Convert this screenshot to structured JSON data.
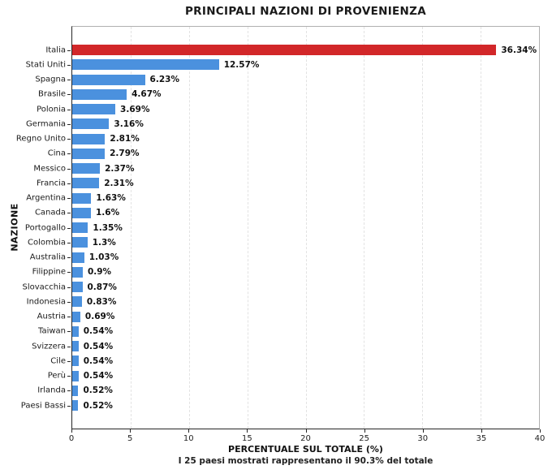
{
  "title": "PRINCIPALI NAZIONI DI PROVENIENZA",
  "chart_data": {
    "type": "bar",
    "orientation": "horizontal",
    "title": "PRINCIPALI NAZIONI DI PROVENIENZA",
    "xlabel": "PERCENTUALE SUL TOTALE (%)",
    "xlabel_subtitle": "I 25 paesi mostrati rappresentano il 90.3% del totale",
    "ylabel": "NAZIONE",
    "xlim": [
      0,
      40
    ],
    "xticks": [
      0,
      5,
      10,
      15,
      20,
      25,
      30,
      35,
      40
    ],
    "grid": "vertical-dashed",
    "legend": "none",
    "highlight_index": 0,
    "highlight_color": "#d22729",
    "bar_color": "#4b91de",
    "categories": [
      "Italia",
      "Stati Uniti",
      "Spagna",
      "Brasile",
      "Polonia",
      "Germania",
      "Regno Unito",
      "Cina",
      "Messico",
      "Francia",
      "Argentina",
      "Canada",
      "Portogallo",
      "Colombia",
      "Australia",
      "Filippine",
      "Slovacchia",
      "Indonesia",
      "Austria",
      "Taiwan",
      "Svizzera",
      "Cile",
      "Perù",
      "Irlanda",
      "Paesi Bassi"
    ],
    "values": [
      36.34,
      12.57,
      6.23,
      4.67,
      3.69,
      3.16,
      2.81,
      2.79,
      2.37,
      2.31,
      1.63,
      1.6,
      1.35,
      1.3,
      1.03,
      0.9,
      0.87,
      0.83,
      0.69,
      0.54,
      0.54,
      0.54,
      0.54,
      0.52,
      0.52
    ],
    "value_labels": [
      "36.34%",
      "12.57%",
      "6.23%",
      "4.67%",
      "3.69%",
      "3.16%",
      "2.81%",
      "2.79%",
      "2.37%",
      "2.31%",
      "1.63%",
      "1.6%",
      "1.35%",
      "1.3%",
      "1.03%",
      "0.9%",
      "0.87%",
      "0.83%",
      "0.69%",
      "0.54%",
      "0.54%",
      "0.54%",
      "0.54%",
      "0.52%",
      "0.52%"
    ]
  }
}
